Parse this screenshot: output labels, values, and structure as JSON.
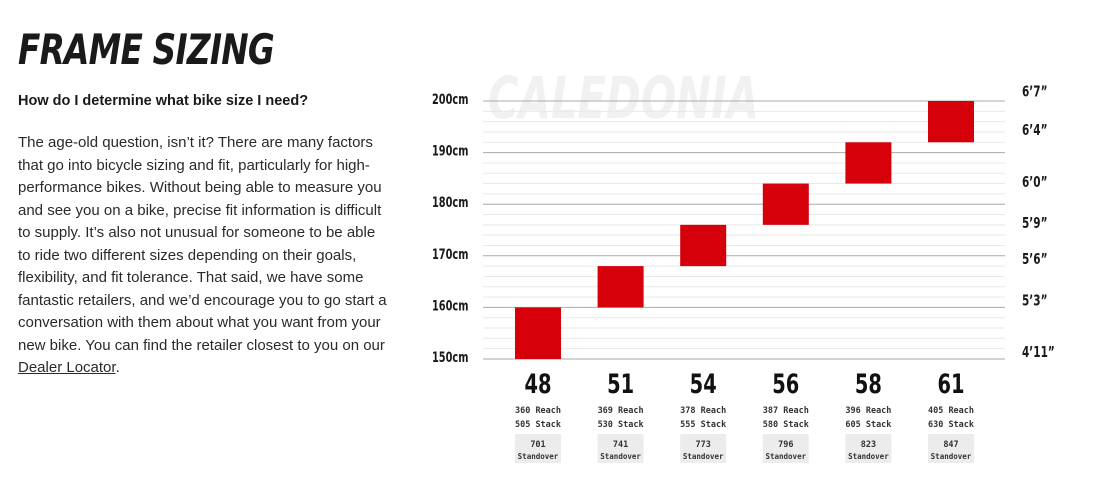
{
  "heading": {
    "title": "FRAME SIZING",
    "question": "How do I determine what bike size I need?"
  },
  "body": {
    "paragraph": "The age-old question, isn’t it? There are many factors that go into bicycle sizing and fit, particularly for high-performance bikes. Without being able to measure you and see you on a bike, precise fit information is difficult to supply. It’s also not unusual for someone to be able to ride two different sizes depending on their goals, flexibility, and fit tolerance. That said, we have some fantastic retailers, and we’d encourage you to go start a conversation with them about what you want from your new bike. You can find the retailer closest to you on our ",
    "link_text": "Dealer Locator",
    "trailing": "."
  },
  "colors": {
    "bar": "#d6000a",
    "grid_major": "#aaaaaa",
    "grid_minor": "#e9e9e9",
    "watermark": "#f1f1f1",
    "badge_bg": "#ececec"
  },
  "chart_data": {
    "type": "bar",
    "watermark": "CALEDONIA",
    "y_unit": "cm",
    "ylim": [
      150,
      200
    ],
    "left_ticks": [
      "150cm",
      "160cm",
      "170cm",
      "180cm",
      "190cm",
      "200cm"
    ],
    "left_tick_values": [
      150,
      160,
      170,
      180,
      190,
      200
    ],
    "right_ticks": [
      "4’11”",
      "5’3”",
      "5’6”",
      "5’9”",
      "6’0”",
      "6’4”",
      "6’7”"
    ],
    "right_tick_values": [
      150,
      160,
      168,
      175,
      183,
      193,
      200.5
    ],
    "categories": [
      "48",
      "51",
      "54",
      "56",
      "58",
      "61"
    ],
    "height_ranges": [
      [
        150,
        160
      ],
      [
        160,
        168
      ],
      [
        168,
        176
      ],
      [
        176,
        184
      ],
      [
        184,
        192
      ],
      [
        192,
        200
      ]
    ],
    "reach": [
      360,
      369,
      378,
      387,
      396,
      405
    ],
    "stack": [
      505,
      530,
      555,
      580,
      605,
      630
    ],
    "standover": [
      701,
      741,
      773,
      796,
      823,
      847
    ],
    "reach_label": "Reach",
    "stack_label": "Stack",
    "standover_label": "Standover",
    "grid": true
  }
}
